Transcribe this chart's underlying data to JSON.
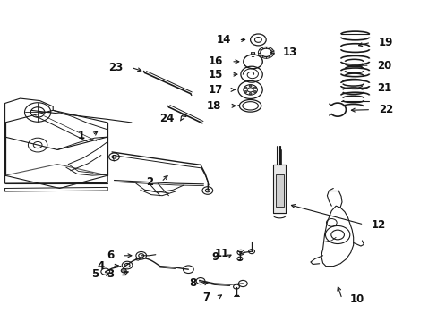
{
  "background_color": "#ffffff",
  "line_color": "#1a1a1a",
  "label_color": "#111111",
  "font_size": 8.5,
  "fig_width": 4.89,
  "fig_height": 3.6,
  "dpi": 100,
  "label_positions": {
    "1": [
      0.215,
      0.548,
      0.23,
      0.565
    ],
    "2": [
      0.385,
      0.428,
      0.395,
      0.455
    ],
    "3": [
      0.29,
      0.148,
      0.31,
      0.158
    ],
    "4": [
      0.265,
      0.168,
      0.28,
      0.168
    ],
    "5": [
      0.255,
      0.145,
      0.268,
      0.152
    ],
    "6": [
      0.29,
      0.2,
      0.31,
      0.205
    ],
    "7": [
      0.51,
      0.072,
      0.518,
      0.09
    ],
    "8": [
      0.48,
      0.118,
      0.495,
      0.128
    ],
    "9": [
      0.53,
      0.198,
      0.542,
      0.21
    ],
    "10": [
      0.785,
      0.068,
      0.79,
      0.115
    ],
    "11": [
      0.555,
      0.21,
      0.57,
      0.22
    ],
    "12": [
      0.83,
      0.298,
      0.795,
      0.34
    ],
    "13": [
      0.615,
      0.822,
      0.6,
      0.822
    ],
    "14": [
      0.545,
      0.878,
      0.575,
      0.875
    ],
    "15": [
      0.53,
      0.758,
      0.56,
      0.758
    ],
    "16": [
      0.53,
      0.8,
      0.558,
      0.8
    ],
    "17": [
      0.53,
      0.712,
      0.558,
      0.712
    ],
    "18": [
      0.528,
      0.662,
      0.558,
      0.662
    ],
    "19": [
      0.835,
      0.878,
      0.805,
      0.858
    ],
    "20": [
      0.832,
      0.79,
      0.805,
      0.79
    ],
    "21": [
      0.832,
      0.718,
      0.805,
      0.718
    ],
    "22": [
      0.832,
      0.648,
      0.802,
      0.648
    ],
    "23": [
      0.31,
      0.79,
      0.325,
      0.778
    ],
    "24": [
      0.42,
      0.628,
      0.41,
      0.615
    ]
  }
}
